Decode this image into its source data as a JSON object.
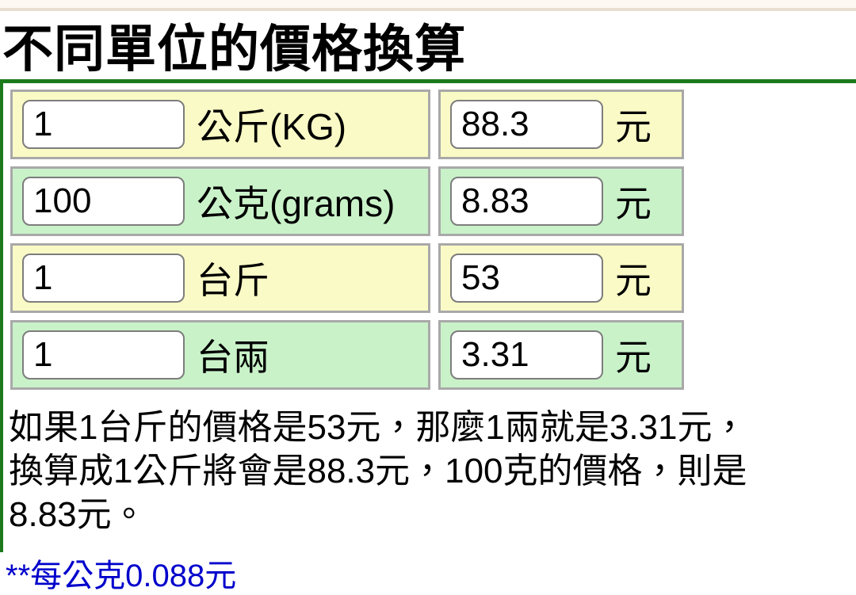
{
  "page": {
    "title": "不同單位的價格換算"
  },
  "converter": {
    "rows": [
      {
        "amount": "1",
        "unit": "公斤(KG)",
        "price": "88.3",
        "currency": "元"
      },
      {
        "amount": "100",
        "unit": "公克(grams)",
        "price": "8.83",
        "currency": "元"
      },
      {
        "amount": "1",
        "unit": "台斤",
        "price": "53",
        "currency": "元"
      },
      {
        "amount": "1",
        "unit": "台兩",
        "price": "3.31",
        "currency": "元"
      }
    ]
  },
  "description": {
    "lines": [
      "如果1台斤的價格是53元，那麼1兩就是3.31元，",
      "換算成1公斤將會是88.3元，100克的價格，則是",
      "8.83元。"
    ]
  },
  "note": {
    "text": "**每公克0.088元"
  },
  "colors": {
    "accent_green": "#1c7a1c",
    "row_yellow": "#fafac6",
    "row_green": "#c9f2c9",
    "cell_border": "#a9a9a9",
    "input_border": "#7d7d7d",
    "note_blue": "#0000cc",
    "topbar_bg": "#fdf8f1",
    "topbar_border": "#e8dfd2"
  }
}
